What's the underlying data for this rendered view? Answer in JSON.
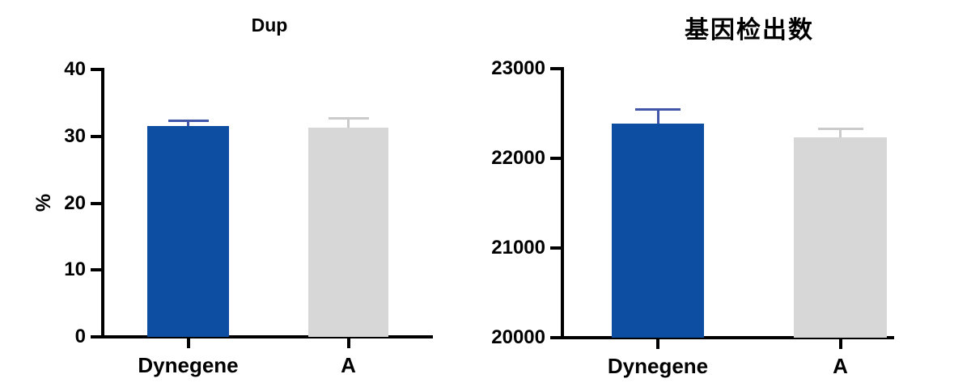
{
  "figure": {
    "background": "#ffffff",
    "brand_blue": "#0d4da2",
    "neutral_gray": "#d7d7d7"
  },
  "chart_data": [
    {
      "type": "bar",
      "title": "Dup",
      "xlabel": "",
      "ylabel": "%",
      "categories": [
        "Dynegene",
        "A"
      ],
      "values": [
        31.5,
        31.3
      ],
      "error_top": [
        32.4,
        32.8
      ],
      "error_plus": [
        0.9,
        1.5
      ],
      "ylim": [
        0,
        40
      ],
      "yticks": [
        0,
        10,
        20,
        30,
        40
      ],
      "grid": false,
      "legend": false,
      "bar_colors": [
        "#0d4da2",
        "#d7d7d7"
      ],
      "error_bar_colors": [
        "#4156a8",
        "#cbcbcb"
      ]
    },
    {
      "type": "bar",
      "title": "基因检出数",
      "xlabel": "",
      "ylabel": "",
      "categories": [
        "Dynegene",
        "A"
      ],
      "values": [
        22390,
        22230
      ],
      "error_top": [
        22550,
        22335
      ],
      "error_plus": [
        160,
        105
      ],
      "ylim": [
        20000,
        23000
      ],
      "yticks": [
        20000,
        21000,
        22000,
        23000
      ],
      "grid": false,
      "legend": false,
      "bar_colors": [
        "#0d4da2",
        "#d7d7d7"
      ],
      "error_bar_colors": [
        "#4156a8",
        "#cbcbcb"
      ]
    }
  ]
}
